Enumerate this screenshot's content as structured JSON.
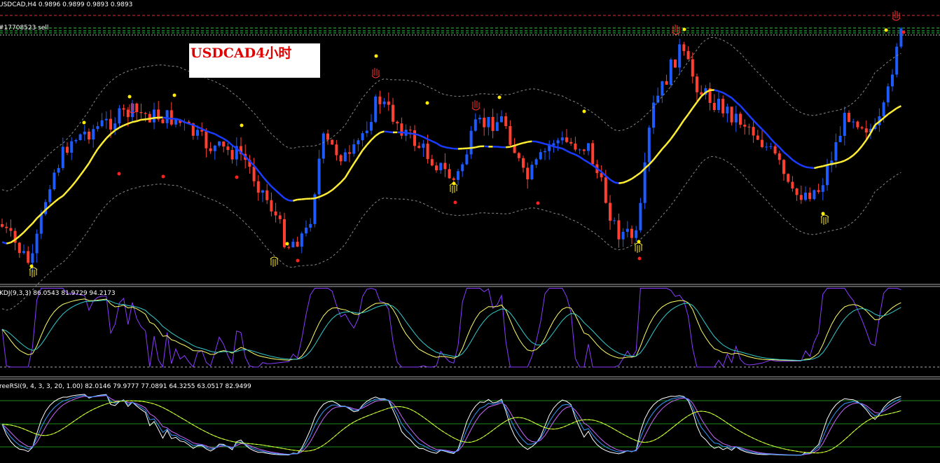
{
  "header": {
    "symbol_line": "USDCAD,H4  0.9896 0.9899 0.9893 0.9893",
    "order_label": "#17708523 sell"
  },
  "annotation": {
    "text": "USDCAD4小时"
  },
  "panes": {
    "kdj_label": "KDJ(9,3,3) 86.0543 81.9729 94.2173",
    "rsi_label": "reeRSI(9, 4, 3, 3, 20, 1.00) 82.0146 79.9777 77.0891 64.3255 63.0517 82.9499"
  }
}
